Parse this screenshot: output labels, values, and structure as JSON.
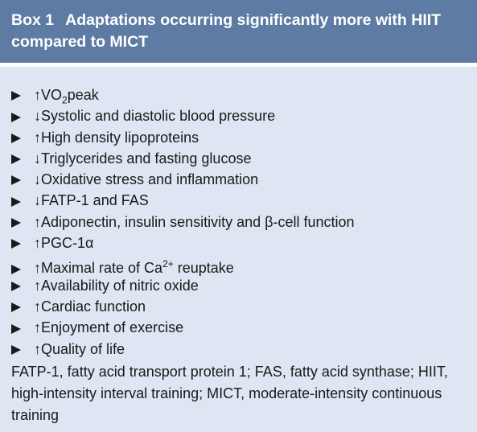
{
  "header": {
    "label": "Box 1",
    "title": "Adaptations occurring significantly more with HIIT compared to MICT"
  },
  "items": [
    {
      "text": "↑VO",
      "sub": "2",
      "rest": "peak"
    },
    {
      "text": "↓Systolic and diastolic blood pressure"
    },
    {
      "text": "↑High density lipoproteins"
    },
    {
      "text": "↓Triglycerides and fasting glucose"
    },
    {
      "text": "↓Oxidative stress and inflammation"
    },
    {
      "text": "↓FATP-1 and FAS"
    },
    {
      "text": "↑Adiponectin, insulin sensitivity and β-cell function"
    },
    {
      "text": "↑PGC-1α"
    },
    {
      "text": "↑Maximal rate of Ca",
      "sup": "2+",
      "rest": " reuptake"
    },
    {
      "text": "↑Availability of nitric oxide"
    },
    {
      "text": "↑Cardiac function"
    },
    {
      "text": "↑Enjoyment of exercise"
    },
    {
      "text": "↑Quality of life"
    }
  ],
  "footnote": "FATP-1, fatty acid transport protein 1; FAS, fatty acid synthase; HIIT, high-intensity interval training; MICT, moderate-intensity continuous training"
}
